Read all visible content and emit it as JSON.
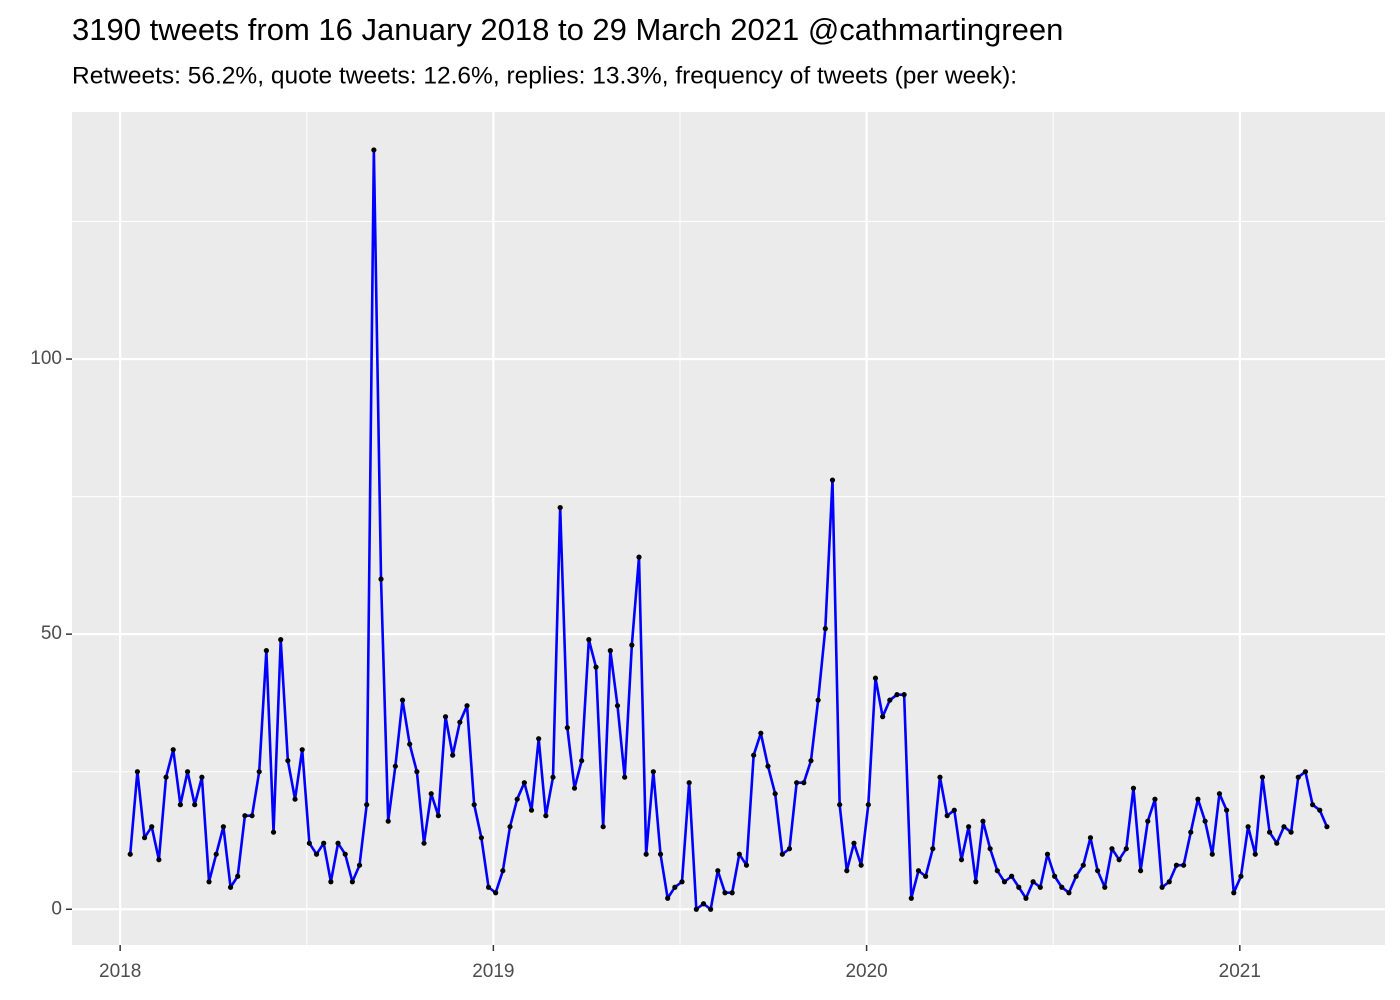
{
  "chart_data": {
    "type": "line",
    "title": "3190 tweets from 16 January 2018 to 29 March 2021 @cathmartingreen",
    "subtitle": "Retweets: 56.2%, quote tweets: 12.6%, replies: 13.3%, frequency of tweets (per week):",
    "x": [
      2018.027,
      2018.0462,
      2018.0654,
      2018.0846,
      2018.1038,
      2018.123,
      2018.1422,
      2018.1614,
      2018.1806,
      2018.1998,
      2018.219,
      2018.2382,
      2018.2574,
      2018.2766,
      2018.2958,
      2018.315,
      2018.3342,
      2018.3534,
      2018.3726,
      2018.3918,
      2018.411,
      2018.4302,
      2018.4494,
      2018.4686,
      2018.4878,
      2018.507,
      2018.5262,
      2018.5454,
      2018.5646,
      2018.5838,
      2018.603,
      2018.6222,
      2018.6414,
      2018.6606,
      2018.6798,
      2018.699,
      2018.7182,
      2018.7374,
      2018.7566,
      2018.7758,
      2018.795,
      2018.8142,
      2018.8334,
      2018.8526,
      2018.8718,
      2018.891,
      2018.9102,
      2018.9294,
      2018.9486,
      2018.9678,
      2018.987,
      2019.0062,
      2019.0254,
      2019.0446,
      2019.0638,
      2019.083,
      2019.1022,
      2019.1214,
      2019.1406,
      2019.1598,
      2019.179,
      2019.1982,
      2019.2174,
      2019.2366,
      2019.2558,
      2019.275,
      2019.2942,
      2019.3134,
      2019.3326,
      2019.3518,
      2019.371,
      2019.3902,
      2019.4094,
      2019.4286,
      2019.4478,
      2019.467,
      2019.4862,
      2019.5054,
      2019.5246,
      2019.5438,
      2019.563,
      2019.5822,
      2019.6014,
      2019.6206,
      2019.6398,
      2019.659,
      2019.6782,
      2019.6974,
      2019.7166,
      2019.7358,
      2019.755,
      2019.7742,
      2019.7934,
      2019.8126,
      2019.8318,
      2019.851,
      2019.8702,
      2019.8894,
      2019.9086,
      2019.9278,
      2019.947,
      2019.9662,
      2019.9854,
      2020.0046,
      2020.0238,
      2020.043,
      2020.0622,
      2020.0814,
      2020.1006,
      2020.1198,
      2020.139,
      2020.1582,
      2020.1774,
      2020.1966,
      2020.2158,
      2020.235,
      2020.2542,
      2020.2734,
      2020.2926,
      2020.3118,
      2020.331,
      2020.3502,
      2020.3694,
      2020.3886,
      2020.4078,
      2020.427,
      2020.4462,
      2020.4654,
      2020.4846,
      2020.5038,
      2020.523,
      2020.5422,
      2020.5614,
      2020.5806,
      2020.5998,
      2020.619,
      2020.6382,
      2020.6574,
      2020.6766,
      2020.6958,
      2020.715,
      2020.7342,
      2020.7534,
      2020.7726,
      2020.7918,
      2020.811,
      2020.8302,
      2020.8494,
      2020.8686,
      2020.8878,
      2020.907,
      2020.9262,
      2020.9454,
      2020.9646,
      2020.9838,
      2021.003,
      2021.0222,
      2021.0414,
      2021.0606,
      2021.0798,
      2021.099,
      2021.1182,
      2021.1374,
      2021.1566,
      2021.1758,
      2021.195,
      2021.2142,
      2021.2334
    ],
    "values": [
      10,
      25,
      13,
      15,
      9,
      24,
      29,
      19,
      25,
      19,
      24,
      5,
      10,
      15,
      4,
      6,
      17,
      17,
      25,
      47,
      14,
      49,
      27,
      20,
      29,
      12,
      10,
      12,
      5,
      12,
      10,
      5,
      8,
      19,
      138,
      60,
      16,
      26,
      38,
      30,
      25,
      12,
      21,
      17,
      35,
      28,
      34,
      37,
      19,
      13,
      4,
      3,
      7,
      15,
      20,
      23,
      18,
      31,
      17,
      24,
      73,
      33,
      22,
      27,
      49,
      44,
      15,
      47,
      37,
      24,
      48,
      64,
      10,
      25,
      10,
      2,
      4,
      5,
      23,
      0,
      1,
      0,
      7,
      3,
      3,
      10,
      8,
      28,
      32,
      26,
      21,
      10,
      11,
      23,
      23,
      27,
      38,
      51,
      78,
      19,
      7,
      12,
      8,
      19,
      42,
      35,
      38,
      39,
      39,
      2,
      7,
      6,
      11,
      24,
      17,
      18,
      9,
      15,
      5,
      16,
      11,
      7,
      5,
      6,
      4,
      2,
      5,
      4,
      10,
      6,
      4,
      3,
      6,
      8,
      13,
      7,
      4,
      11,
      9,
      11,
      22,
      7,
      16,
      20,
      4,
      5,
      8,
      8,
      14,
      20,
      16,
      10,
      21,
      18,
      3,
      6,
      15,
      10,
      24,
      14,
      12,
      15,
      14,
      24,
      25,
      19,
      18,
      15
    ],
    "color": "#0000ff",
    "point_color": "#000000",
    "xlim": [
      2017.871,
      2021.389
    ],
    "xticks": [
      2018,
      2019,
      2020,
      2021
    ],
    "ylim": [
      -6.5,
      144.9
    ],
    "yticks": [
      0,
      50,
      100
    ],
    "grid": true
  }
}
